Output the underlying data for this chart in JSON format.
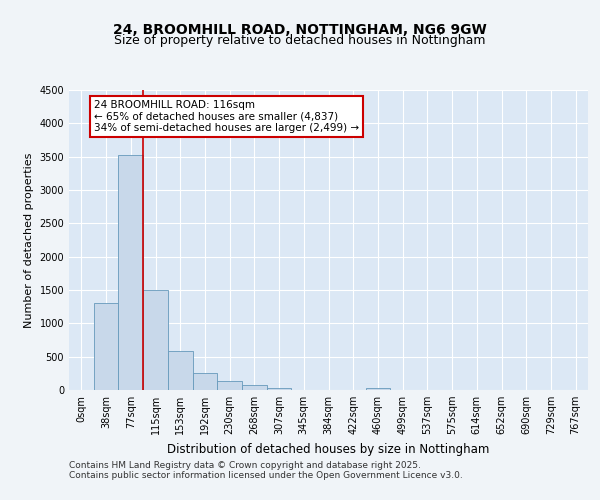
{
  "title_line1": "24, BROOMHILL ROAD, NOTTINGHAM, NG6 9GW",
  "title_line2": "Size of property relative to detached houses in Nottingham",
  "xlabel": "Distribution of detached houses by size in Nottingham",
  "ylabel": "Number of detached properties",
  "bin_labels": [
    "0sqm",
    "38sqm",
    "77sqm",
    "115sqm",
    "153sqm",
    "192sqm",
    "230sqm",
    "268sqm",
    "307sqm",
    "345sqm",
    "384sqm",
    "422sqm",
    "460sqm",
    "499sqm",
    "537sqm",
    "575sqm",
    "614sqm",
    "652sqm",
    "690sqm",
    "729sqm",
    "767sqm"
  ],
  "bar_values": [
    0,
    1300,
    3530,
    1500,
    590,
    250,
    135,
    75,
    35,
    0,
    0,
    0,
    25,
    0,
    0,
    0,
    0,
    0,
    0,
    0,
    0
  ],
  "bar_color": "#c8d8ea",
  "bar_edge_color": "#6699bb",
  "vline_x_bin": 3,
  "vline_color": "#cc0000",
  "annotation_text": "24 BROOMHILL ROAD: 116sqm\n← 65% of detached houses are smaller (4,837)\n34% of semi-detached houses are larger (2,499) →",
  "annotation_box_facecolor": "#ffffff",
  "annotation_box_edgecolor": "#cc0000",
  "ylim": [
    0,
    4500
  ],
  "yticks": [
    0,
    500,
    1000,
    1500,
    2000,
    2500,
    3000,
    3500,
    4000,
    4500
  ],
  "background_color": "#f0f4f8",
  "plot_background_color": "#dce8f5",
  "grid_color": "#ffffff",
  "footer_text": "Contains HM Land Registry data © Crown copyright and database right 2025.\nContains public sector information licensed under the Open Government Licence v3.0.",
  "title_fontsize": 10,
  "subtitle_fontsize": 9,
  "tick_fontsize": 7,
  "ylabel_fontsize": 8,
  "xlabel_fontsize": 8.5,
  "footer_fontsize": 6.5,
  "annotation_fontsize": 7.5
}
